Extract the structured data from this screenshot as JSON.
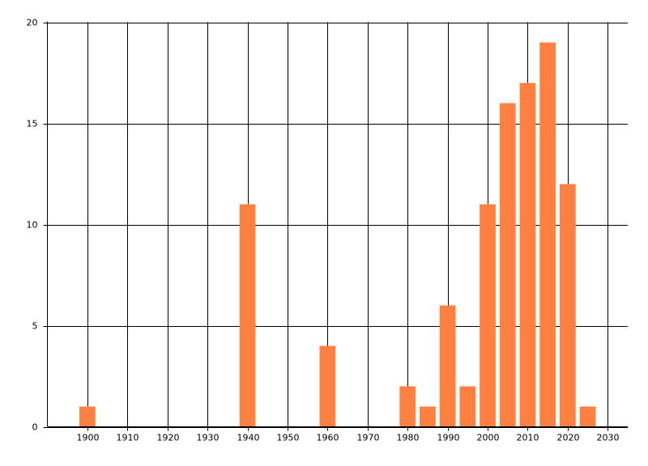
{
  "chart_data": {
    "type": "bar",
    "x": [
      1900,
      1940,
      1960,
      1980,
      1985,
      1990,
      1995,
      2000,
      2005,
      2010,
      2015,
      2020,
      2025
    ],
    "values": [
      1,
      11,
      4,
      2,
      1,
      6,
      2,
      11,
      16,
      17,
      19,
      12,
      1
    ],
    "color": "#ff8040",
    "xlim": [
      1890,
      2035
    ],
    "xticks": [
      1900,
      1910,
      1920,
      1930,
      1940,
      1950,
      1960,
      1970,
      1980,
      1990,
      2000,
      2010,
      2020,
      2030
    ],
    "ylim": [
      0,
      20
    ],
    "yticks": [
      0,
      5,
      10,
      15,
      20
    ],
    "grid": true
  }
}
